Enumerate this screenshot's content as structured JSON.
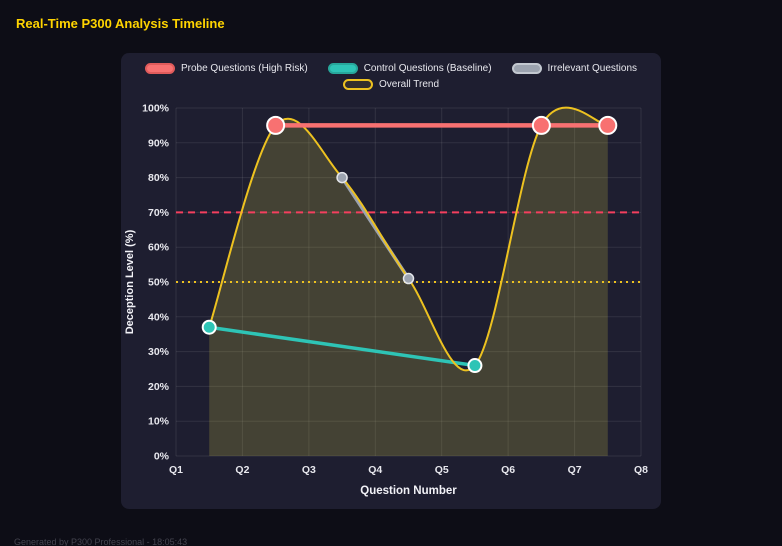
{
  "header": {
    "title": "Real-Time P300 Analysis Timeline"
  },
  "footer": {
    "text": "Generated by P300 Professional - 18:05:43"
  },
  "colors": {
    "page_bg": "#0d0d16",
    "panel_bg": "#1e1e30",
    "title": "#ffd400",
    "grid": "rgba(255,255,255,0.09)",
    "tick_text": "#e8e8ee",
    "axis_title_text": "#f2f2f7"
  },
  "chart_data": {
    "type": "line",
    "title": "Real-Time P300 Analysis Timeline",
    "xlabel": "Question Number",
    "ylabel": "Deception Level (%)",
    "x_ticks": [
      "Q1",
      "Q2",
      "Q3",
      "Q4",
      "Q5",
      "Q6",
      "Q7",
      "Q8"
    ],
    "x_range": [
      1,
      8
    ],
    "ylim": [
      0,
      100
    ],
    "y_tick_step": 10,
    "y_tick_suffix": "%",
    "grid": true,
    "legend_position": "top",
    "legend": [
      {
        "label": "Probe Questions (High Risk)",
        "fill": "#f87171",
        "border": "#e05b5b"
      },
      {
        "label": "Control Questions (Baseline)",
        "fill": "#2ec4b6",
        "border": "#27a79b"
      },
      {
        "label": "Irrelevant Questions",
        "fill": "#9ca3af",
        "border": "#c3c8d0"
      },
      {
        "label": "Overall Trend",
        "fill": "rgba(237,194,32,0.10)",
        "border": "#edc220"
      }
    ],
    "series": [
      {
        "name": "Probe Questions (High Risk)",
        "line_color": "#f87171",
        "line_width": 4.5,
        "marker_fill": "#f87171",
        "marker_stroke": "#ffffff",
        "marker_stroke_width": 2,
        "marker_r": 8.5,
        "z": 4,
        "points": [
          {
            "x": 2.5,
            "y": 95
          },
          {
            "x": 6.5,
            "y": 95
          },
          {
            "x": 7.5,
            "y": 95
          }
        ]
      },
      {
        "name": "Control Questions (Baseline)",
        "line_color": "#2ec4b6",
        "line_width": 3.5,
        "marker_fill": "#2ec4b6",
        "marker_stroke": "#ffffff",
        "marker_stroke_width": 2,
        "marker_r": 6.5,
        "z": 2,
        "points": [
          {
            "x": 1.5,
            "y": 37
          },
          {
            "x": 5.5,
            "y": 26
          }
        ]
      },
      {
        "name": "Irrelevant Questions",
        "line_color": "#9ca3af",
        "line_width": 3.5,
        "marker_fill": "#9ca3af",
        "marker_stroke": "#e5e7eb",
        "marker_stroke_width": 1.5,
        "marker_r": 5,
        "z": 1,
        "points": [
          {
            "x": 3.5,
            "y": 80
          },
          {
            "x": 4.5,
            "y": 51
          }
        ]
      },
      {
        "name": "Overall Trend",
        "line_color": "#edc220",
        "line_width": 2,
        "marker_r": 0,
        "smooth": true,
        "area_fill": "rgba(205,195,70,0.22)",
        "z": 3,
        "points": [
          {
            "x": 1.5,
            "y": 37
          },
          {
            "x": 2.5,
            "y": 95
          },
          {
            "x": 3.5,
            "y": 80
          },
          {
            "x": 4.5,
            "y": 51
          },
          {
            "x": 5.5,
            "y": 26
          },
          {
            "x": 6.5,
            "y": 95
          },
          {
            "x": 7.5,
            "y": 95
          }
        ]
      }
    ],
    "thresholds": [
      {
        "y": 70,
        "color": "#f43f5e",
        "dash": "7 5",
        "width": 2
      },
      {
        "y": 50,
        "color": "#edc220",
        "dash": "2 4",
        "width": 2
      }
    ]
  }
}
